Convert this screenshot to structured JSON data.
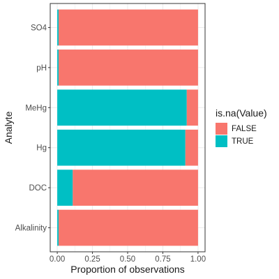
{
  "chart_data": {
    "type": "bar",
    "orientation": "horizontal",
    "stacked": true,
    "title": "",
    "xlabel": "Proportion of observations",
    "ylabel": "Analyte",
    "xlim": [
      0,
      1
    ],
    "x_ticks": [
      "0.00",
      "0.25",
      "0.50",
      "0.75",
      "1.00"
    ],
    "categories": [
      "Alkalinity",
      "DOC",
      "Hg",
      "MeHg",
      "pH",
      "SO4"
    ],
    "series": [
      {
        "name": "TRUE",
        "color": "#00BFC4",
        "values": [
          0.01,
          0.11,
          0.91,
          0.92,
          0.01,
          0.01
        ]
      },
      {
        "name": "FALSE",
        "color": "#F8766D",
        "values": [
          0.99,
          0.89,
          0.09,
          0.08,
          0.99,
          0.99
        ]
      }
    ],
    "grid": true,
    "legend": {
      "title": "is.na(Value)",
      "position": "right",
      "entries": [
        "FALSE",
        "TRUE"
      ]
    }
  },
  "legend": {
    "title": "is.na(Value)",
    "items": [
      {
        "label": "FALSE",
        "color": "#F8766D"
      },
      {
        "label": "TRUE",
        "color": "#00BFC4"
      }
    ]
  }
}
